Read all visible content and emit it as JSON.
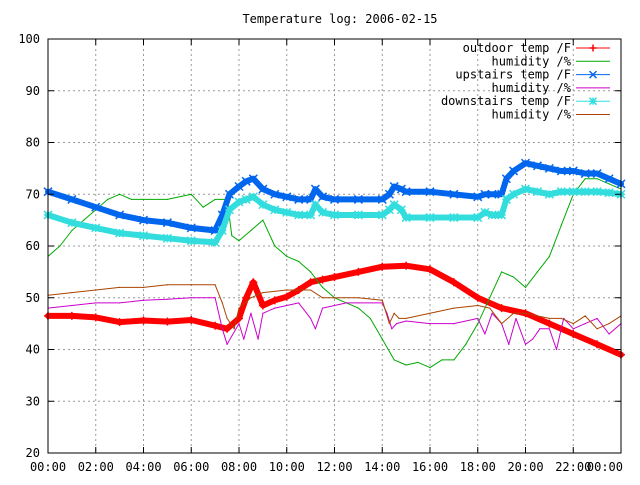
{
  "chart_data": {
    "type": "line",
    "title": "Temperature log: 2006-02-15",
    "xlabel": "",
    "ylabel": "",
    "xlim": [
      0,
      24
    ],
    "ylim": [
      20,
      100
    ],
    "grid": true,
    "legend_placement": "top-right",
    "x_tick_labels": [
      "00:00",
      "02:00",
      "04:00",
      "06:00",
      "08:00",
      "10:00",
      "12:00",
      "14:00",
      "16:00",
      "18:00",
      "20:00",
      "22:00",
      "00:00"
    ],
    "y_tick_labels": [
      "20",
      "30",
      "40",
      "50",
      "60",
      "70",
      "80",
      "90",
      "100"
    ],
    "series": [
      {
        "name": "outdoor temp /F",
        "color": "#ff0000",
        "marker": "plus",
        "thick": true,
        "x": [
          0,
          1,
          2,
          3,
          4,
          5,
          6,
          7,
          7.5,
          8,
          8.3,
          8.6,
          9,
          9.5,
          10,
          10.5,
          11,
          11.5,
          12,
          13,
          14,
          15,
          16,
          17,
          18,
          19,
          20,
          21,
          22,
          23,
          24
        ],
        "y": [
          46.5,
          46.5,
          46.2,
          45.3,
          45.6,
          45.4,
          45.7,
          44.6,
          44,
          46,
          50,
          53,
          48.5,
          49.5,
          50.2,
          51.5,
          53,
          53.5,
          54,
          55,
          56,
          56.2,
          55.5,
          53,
          50,
          48,
          47,
          45,
          43,
          41,
          39
        ]
      },
      {
        "name": "humidity /%",
        "color": "#00aa00",
        "marker": "none",
        "thick": false,
        "x": [
          0,
          0.5,
          1,
          1.5,
          2,
          2.5,
          3,
          3.5,
          4,
          5,
          6,
          6.5,
          7,
          7.5,
          7.7,
          8,
          8.5,
          9,
          9.5,
          10,
          10.5,
          11,
          11.5,
          12,
          12.5,
          13,
          13.5,
          14,
          14.5,
          15,
          15.5,
          16,
          16.5,
          17,
          17.5,
          18,
          18.5,
          19,
          19.5,
          20,
          20.5,
          21,
          21.5,
          22,
          22.5,
          23,
          23.5,
          24
        ],
        "y": [
          58,
          60,
          63,
          65,
          67,
          69,
          70,
          69,
          69,
          69,
          70,
          67.5,
          69,
          69,
          62,
          61,
          63,
          65,
          60,
          58,
          57,
          55,
          52,
          50,
          49,
          48,
          46,
          42,
          38,
          37,
          37.5,
          36.5,
          38,
          38,
          41,
          45,
          50,
          55,
          54,
          52,
          55,
          58,
          64,
          70,
          73,
          73,
          72,
          71
        ]
      },
      {
        "name": "upstairs temp /F",
        "color": "#0066ee",
        "marker": "x",
        "thick": true,
        "x": [
          0,
          1,
          2,
          3,
          4,
          5,
          6,
          7,
          7.3,
          7.6,
          8,
          8.3,
          8.6,
          9,
          9.5,
          10,
          10.5,
          11,
          11.2,
          11.5,
          12,
          13,
          14,
          14.3,
          14.5,
          14.8,
          15,
          16,
          17,
          18,
          18.3,
          18.6,
          19,
          19.2,
          19.5,
          20,
          20.5,
          21,
          21.5,
          22,
          22.5,
          23,
          23.5,
          24
        ],
        "y": [
          70.5,
          69,
          67.5,
          66,
          65,
          64.5,
          63.5,
          63,
          66,
          70,
          71.5,
          72.5,
          73,
          71,
          70,
          69.5,
          69,
          69,
          71,
          69.5,
          69,
          69,
          69,
          70,
          71.5,
          71,
          70.5,
          70.5,
          70,
          69.5,
          70,
          70,
          70,
          73,
          74.5,
          76,
          75.5,
          75,
          74.5,
          74.5,
          74,
          74,
          73,
          72
        ]
      },
      {
        "name": "humidity /%",
        "color": "#cc00cc",
        "marker": "none",
        "thick": false,
        "x": [
          0,
          1,
          2,
          3,
          4,
          5,
          6,
          7,
          7.3,
          7.5,
          8,
          8.2,
          8.5,
          8.8,
          9,
          9.5,
          10,
          10.5,
          11,
          11.2,
          11.5,
          12,
          12.5,
          13,
          14,
          14.2,
          14.4,
          14.6,
          15,
          16,
          17,
          18,
          18.3,
          18.6,
          19,
          19.3,
          19.6,
          20,
          20.3,
          20.6,
          21,
          21.3,
          21.6,
          22,
          22.5,
          23,
          23.5,
          24
        ],
        "y": [
          48,
          48.5,
          49,
          49,
          49.5,
          49.7,
          50,
          50,
          44,
          41,
          45,
          42,
          47,
          42,
          47,
          48,
          48.5,
          49,
          46,
          44,
          48,
          48.5,
          49,
          49,
          49,
          47,
          44,
          45,
          45.5,
          45,
          45,
          46,
          43,
          47,
          45,
          41,
          46,
          41,
          42,
          44,
          44,
          40,
          46,
          44,
          45,
          46,
          43,
          45
        ]
      },
      {
        "name": "downstairs temp /F",
        "color": "#33dddd",
        "marker": "star",
        "thick": true,
        "x": [
          0,
          1,
          2,
          3,
          4,
          5,
          6,
          7,
          7.3,
          7.6,
          8,
          8.3,
          8.6,
          9,
          9.5,
          10,
          10.5,
          11,
          11.2,
          11.5,
          12,
          13,
          14,
          14.3,
          14.5,
          14.8,
          15,
          16,
          17,
          18,
          18.3,
          18.6,
          19,
          19.2,
          19.5,
          20,
          20.5,
          21,
          21.5,
          22,
          22.5,
          23,
          23.5,
          24
        ],
        "y": [
          66,
          64.5,
          63.5,
          62.5,
          62,
          61.5,
          61,
          60.7,
          63,
          67,
          68.5,
          69,
          69.5,
          68,
          67,
          66.5,
          66,
          66,
          68,
          66.5,
          66,
          66,
          66,
          67,
          68,
          67,
          65.5,
          65.5,
          65.5,
          65.5,
          66.5,
          66,
          66,
          69,
          70,
          71,
          70.5,
          70,
          70.5,
          70.5,
          70.5,
          70.5,
          70.3,
          70
        ]
      },
      {
        "name": "humidity /%",
        "color": "#aa4400",
        "marker": "none",
        "thick": false,
        "x": [
          0,
          1,
          2,
          3,
          4,
          5,
          6,
          7,
          7.3,
          7.5,
          7.8,
          8,
          8.5,
          9,
          10,
          11,
          11.5,
          12,
          13,
          14,
          14.3,
          14.5,
          14.7,
          15,
          16,
          17,
          18,
          18.5,
          19,
          19.5,
          20,
          20.5,
          21,
          21.5,
          22,
          22.5,
          23,
          23.5,
          24
        ],
        "y": [
          50.5,
          51,
          51.5,
          52,
          52,
          52.5,
          52.5,
          52.5,
          49,
          46,
          44,
          48,
          50,
          51,
          51.5,
          51.5,
          50,
          50,
          50,
          49.5,
          45,
          47,
          46,
          46,
          47,
          48,
          48.5,
          48,
          45,
          47,
          47,
          46.5,
          46,
          46,
          45,
          46.5,
          44,
          45,
          46.5
        ]
      }
    ]
  }
}
